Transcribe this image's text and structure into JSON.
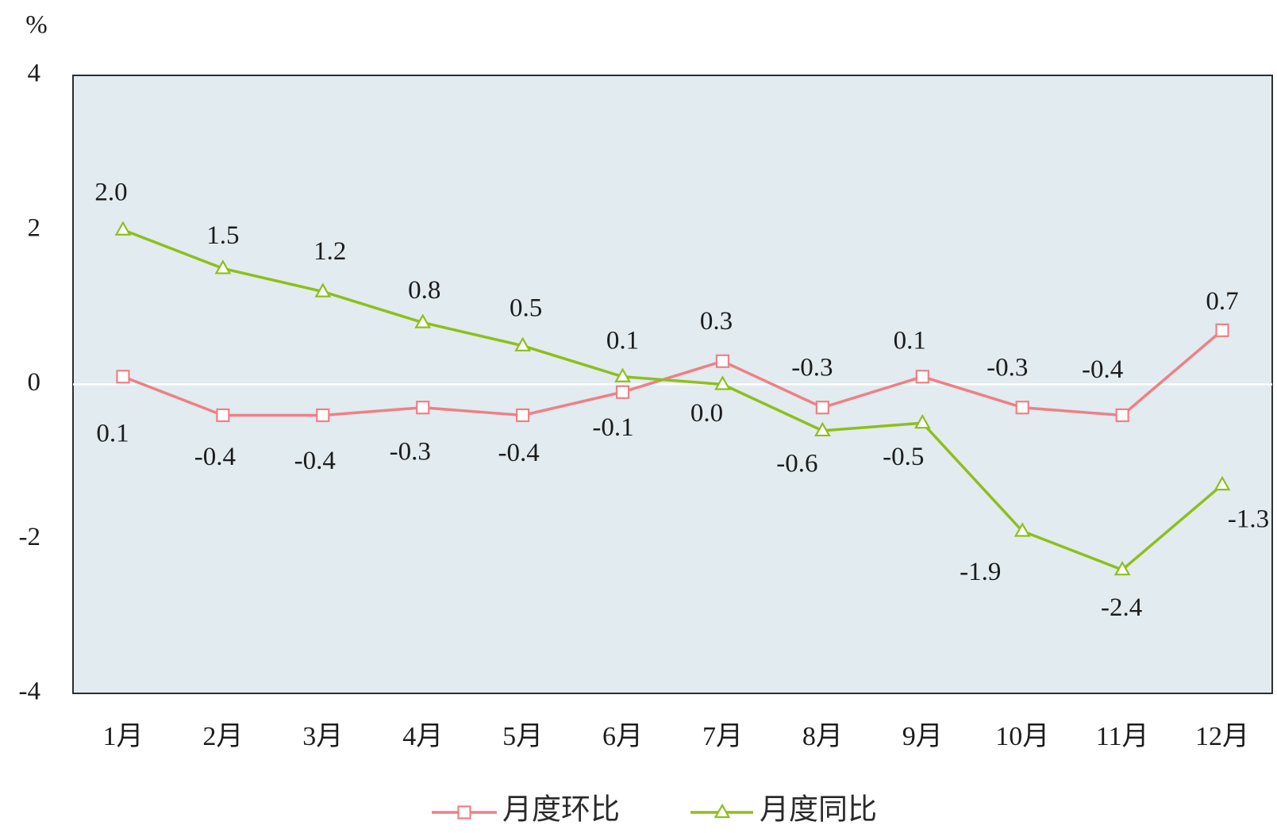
{
  "chart_data": {
    "type": "line",
    "categories": [
      "1月",
      "2月",
      "3月",
      "4月",
      "5月",
      "6月",
      "7月",
      "8月",
      "9月",
      "10月",
      "11月",
      "12月"
    ],
    "series": [
      {
        "name": "月度环比",
        "marker": "square",
        "color": "#ee8086",
        "values": [
          0.1,
          -0.4,
          -0.4,
          -0.3,
          -0.4,
          -0.1,
          0.3,
          -0.3,
          0.1,
          -0.3,
          -0.4,
          0.7
        ],
        "labels": [
          "0.1",
          "-0.4",
          "-0.4",
          "-0.3",
          "-0.4",
          "-0.1",
          "0.3",
          "-0.3",
          "0.1",
          "-0.3",
          "-0.4",
          "0.7"
        ]
      },
      {
        "name": "月度同比",
        "marker": "triangle",
        "color": "#8dbf1c",
        "values": [
          2.0,
          1.5,
          1.2,
          0.8,
          0.5,
          0.1,
          0.0,
          -0.6,
          -0.5,
          -1.9,
          -2.4,
          -1.3
        ],
        "labels": [
          "2.0",
          "1.5",
          "1.2",
          "0.8",
          "0.5",
          "0.1",
          "0.0",
          "-0.6",
          "-0.5",
          "-1.9",
          "-2.4",
          "-1.3"
        ]
      }
    ],
    "ylabel": "%",
    "ylim": [
      -4,
      4
    ],
    "yticks": [
      4,
      2,
      0,
      -2,
      -4
    ],
    "grid": false,
    "zero_line": true,
    "legend": "bottom",
    "plot_background": "#e2ebef"
  }
}
